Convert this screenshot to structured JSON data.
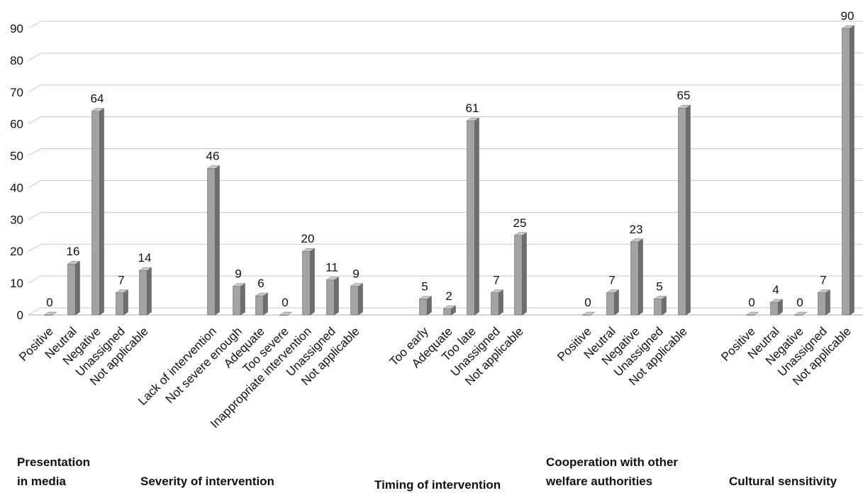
{
  "chart_data": {
    "type": "bar",
    "title": "",
    "ylim": [
      0,
      90
    ],
    "y_ticks": [
      0,
      10,
      20,
      30,
      40,
      50,
      60,
      70,
      80,
      90
    ],
    "grid": true,
    "legend": "none",
    "bar_color": "#a3a3a3",
    "groups": [
      {
        "name_lines": [
          "Presentation",
          "in media"
        ],
        "categories": [
          "Positive",
          "Neutral",
          "Negative",
          "Unassigned",
          "Not applicable"
        ],
        "values": [
          0,
          16,
          64,
          7,
          14
        ]
      },
      {
        "name_lines": [
          "Severity of intervention"
        ],
        "categories": [
          "Lack of intervention",
          "Not severe enough",
          "Adequate",
          "Too severe",
          "Inappropriate intervention",
          "Unassigned",
          "Not applicable"
        ],
        "values": [
          46,
          9,
          6,
          0,
          20,
          11,
          9
        ]
      },
      {
        "name_lines": [
          "Timing of intervention"
        ],
        "categories": [
          "Too early",
          "Adequate",
          "Too late",
          "Unassigned",
          "Not applicable"
        ],
        "values": [
          5,
          2,
          61,
          7,
          25
        ]
      },
      {
        "name_lines": [
          "Cooperation with other",
          "welfare authorities"
        ],
        "categories": [
          "Positive",
          "Neutral",
          "Negative",
          "Unassigned",
          "Not applicable"
        ],
        "values": [
          0,
          7,
          23,
          5,
          65
        ]
      },
      {
        "name_lines": [
          "Cultural sensitivity"
        ],
        "categories": [
          "Positive",
          "Neutral",
          "Negative",
          "Unassigned",
          "Not applicable"
        ],
        "values": [
          0,
          4,
          0,
          7,
          90
        ]
      }
    ]
  }
}
